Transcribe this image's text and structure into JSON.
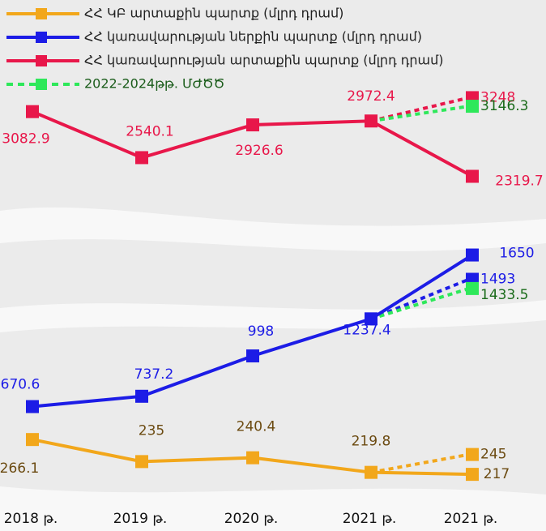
{
  "chart_data": {
    "type": "line",
    "categories": [
      "2018 թ.",
      "2019 թ.",
      "2020 թ.",
      "2021 թ.",
      "2021 թ."
    ],
    "series": [
      {
        "name": "ՀՀ ԿԲ արտաքին պարտք (մլրդ դրամ)",
        "color": "#f2a71b",
        "values": [
          266.1,
          235.0,
          240.4,
          219.8,
          217.0
        ],
        "ylim": [
          200,
          280
        ]
      },
      {
        "name": "ՀՀ կառավարության ներքին պարտք (մլրդ դրամ)",
        "color": "#1c1ce6",
        "values": [
          670.6,
          737.2,
          998.0,
          1237.4,
          1650.0
        ],
        "ylim": [
          600,
          1700
        ]
      },
      {
        "name": "ՀՀ կառավարության արտաքին պարտք (մլրդ դրամ)",
        "color": "#e8174a",
        "values": [
          3082.9,
          2540.1,
          2926.6,
          2972.4,
          2319.7
        ],
        "ylim": [
          2200,
          3300
        ]
      }
    ],
    "projection_legend": {
      "name": "2022-2024թթ. ՄԺԾԾ",
      "color": "#2ee85a"
    },
    "projections": [
      {
        "series": 0,
        "color": "#f2a71b",
        "value": 245.0
      },
      {
        "series": 1,
        "color": "#1c1ce6",
        "value": 1493.0
      },
      {
        "series": 1,
        "color": "#2ee85a",
        "value": 1433.5
      },
      {
        "series": 2,
        "color": "#e8174a",
        "value": 3248.0
      },
      {
        "series": 2,
        "color": "#2ee85a",
        "value": 3146.3
      }
    ]
  }
}
